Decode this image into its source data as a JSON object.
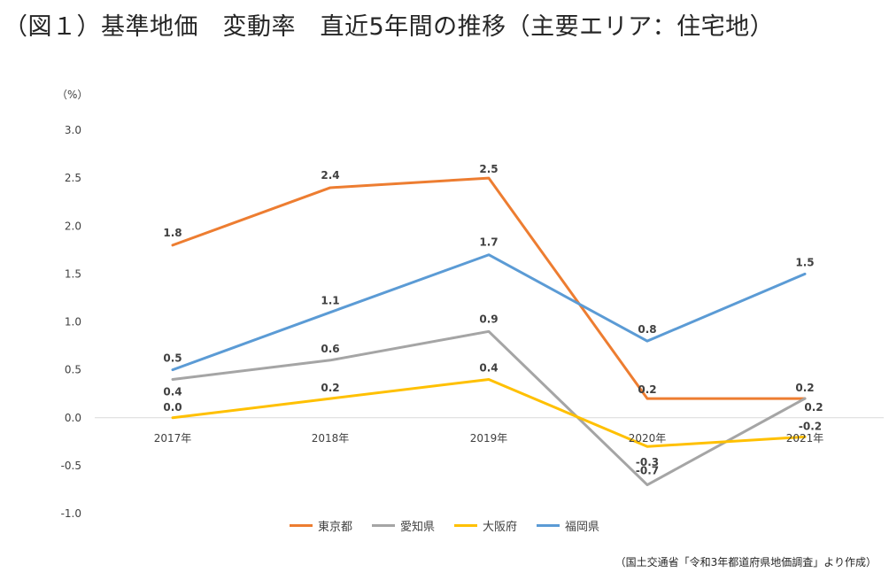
{
  "chart_data": {
    "type": "line",
    "title": "（図１）基準地価　変動率　直近5年間の推移（主要エリア：住宅地）",
    "unit_label": "（%）",
    "categories": [
      "2017年",
      "2018年",
      "2019年",
      "2020年",
      "2021年"
    ],
    "ylim": [
      -1.0,
      3.0
    ],
    "yticks": [
      "3.0",
      "2.5",
      "2.0",
      "1.5",
      "1.0",
      "0.5",
      "0.0",
      "-0.5",
      "-1.0"
    ],
    "ytick_values": [
      3.0,
      2.5,
      2.0,
      1.5,
      1.0,
      0.5,
      0.0,
      -0.5,
      -1.0
    ],
    "grid": false,
    "legend_position": "bottom",
    "series": [
      {
        "name": "東京都",
        "color": "#ED7D31",
        "values": [
          1.8,
          2.4,
          2.5,
          0.2,
          0.2
        ],
        "labels": [
          "1.8",
          "2.4",
          "2.5",
          "0.2",
          "0.2"
        ]
      },
      {
        "name": "愛知県",
        "color": "#A5A5A5",
        "values": [
          0.4,
          0.6,
          0.9,
          -0.7,
          0.2
        ],
        "labels": [
          "0.4",
          "0.6",
          "0.9",
          "-0.7",
          "0.2"
        ]
      },
      {
        "name": "大阪府",
        "color": "#FFC000",
        "values": [
          0.0,
          0.2,
          0.4,
          -0.3,
          -0.2
        ],
        "labels": [
          "0.0",
          "0.2",
          "0.4",
          "-0.3",
          "-0.2"
        ]
      },
      {
        "name": "福岡県",
        "color": "#5B9BD5",
        "values": [
          0.5,
          1.1,
          1.7,
          0.8,
          1.5
        ],
        "labels": [
          "0.5",
          "1.1",
          "1.7",
          "0.8",
          "1.5"
        ]
      }
    ]
  },
  "source_note": "（国土交通省「令和3年都道府県地価調査」より作成）"
}
